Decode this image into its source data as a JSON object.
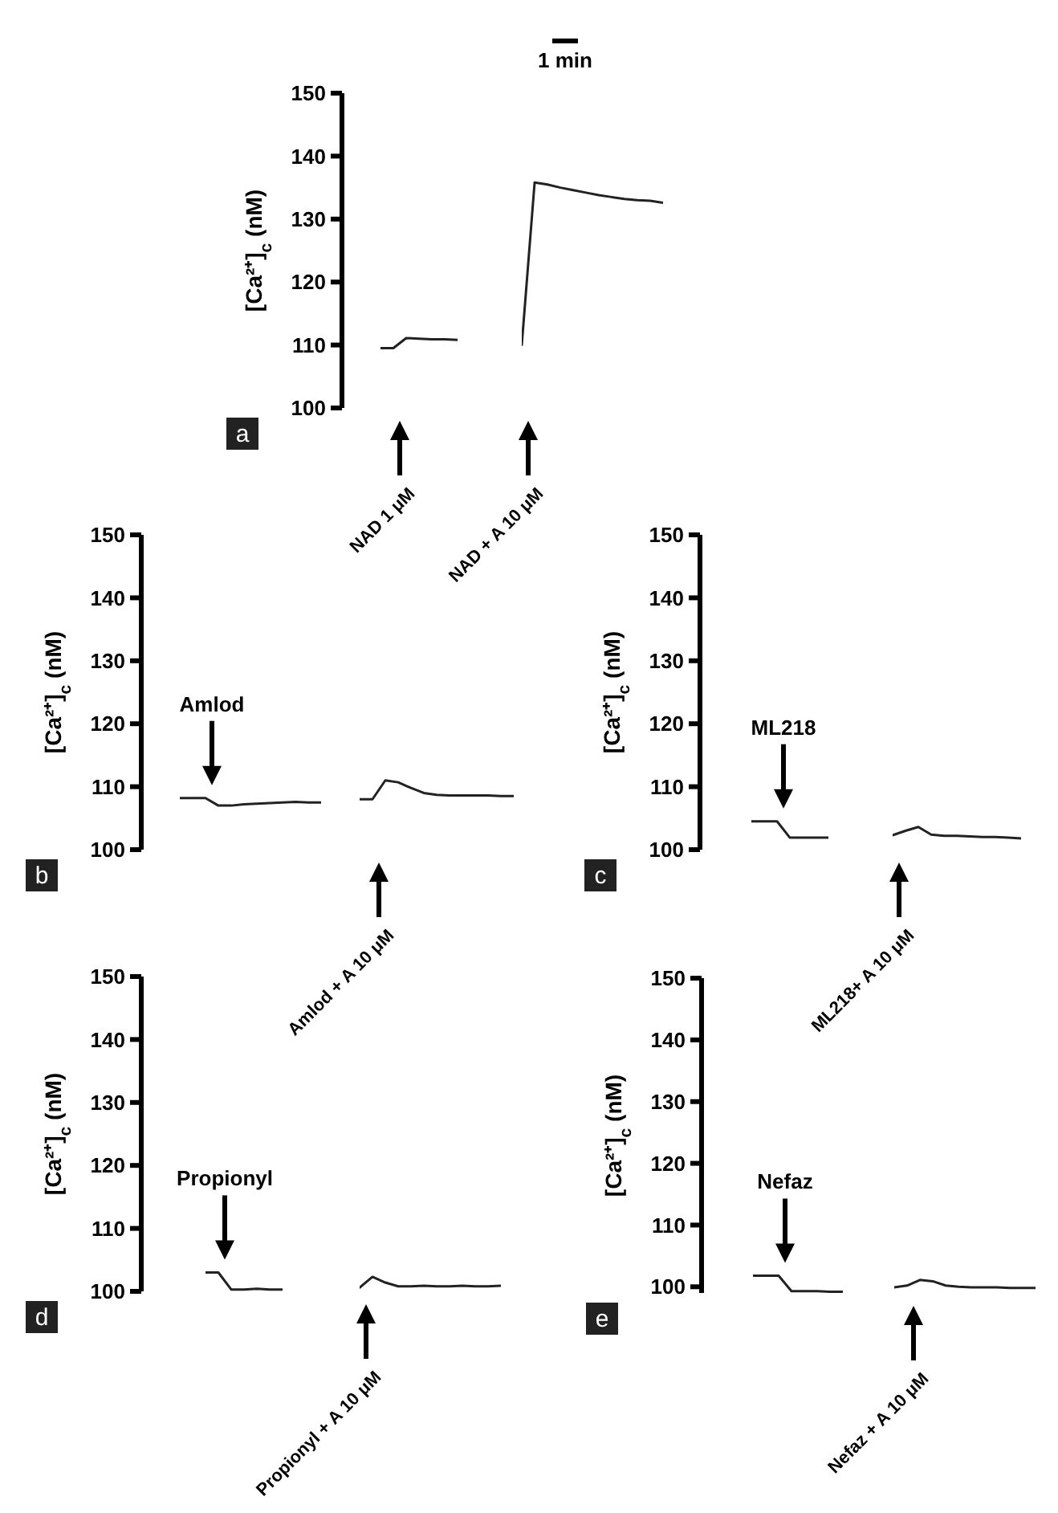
{
  "chart_data": [
    {
      "type": "line",
      "title": "a",
      "ylabel": "[Ca²⁺]$_{c}$ (nM)",
      "tick_labels": "y",
      "ylim": [
        100,
        150
      ],
      "yticks": [
        100,
        110,
        120,
        130,
        140,
        150
      ],
      "color": "#222222",
      "categories": [
        null,
        null,
        null,
        null,
        null,
        null,
        null,
        null,
        null,
        null,
        null,
        null,
        null,
        null,
        null,
        null,
        null,
        null,
        null,
        null,
        null,
        null,
        null
      ],
      "values": [
        109.5,
        109.5,
        111.1,
        111.0,
        110.9,
        110.9,
        110.8,
        null,
        null,
        null,
        null,
        110.0,
        135.8,
        135.5,
        135.0,
        134.6,
        134.2,
        133.8,
        133.5,
        133.2,
        133.0,
        132.9,
        132.6
      ],
      "annotations": [
        "NAD 1 μM",
        "NAD + A 10 μM",
        "1 min"
      ]
    },
    {
      "type": "line",
      "title": "b",
      "ylabel": "[Ca²⁺]$_{c}$ (nM)",
      "tick_labels": "y",
      "ylim": [
        100,
        150
      ],
      "yticks": [
        100,
        110,
        120,
        130,
        140,
        150
      ],
      "color": "#222222",
      "categories": [
        null,
        null,
        null,
        null,
        null,
        null,
        null,
        null,
        null,
        null,
        null,
        null,
        null,
        null,
        null,
        null,
        null,
        null,
        null,
        null,
        null,
        null,
        null,
        null,
        null,
        null,
        null
      ],
      "values": [
        108.2,
        108.2,
        108.2,
        107.0,
        107.0,
        107.2,
        107.3,
        107.4,
        107.5,
        107.6,
        107.5,
        107.5,
        null,
        null,
        108.0,
        108.0,
        111.0,
        110.7,
        109.8,
        109.0,
        108.7,
        108.6,
        108.6,
        108.6,
        108.6,
        108.5,
        108.5
      ],
      "annotations": [
        "Amlod",
        "Amlod + A 10 μM"
      ]
    },
    {
      "type": "line",
      "title": "c",
      "ylabel": "[Ca²⁺]$_{c}$ (nM)",
      "tick_labels": "y",
      "ylim": [
        100,
        150
      ],
      "yticks": [
        100,
        110,
        120,
        130,
        140,
        150
      ],
      "color": "#222222",
      "categories": [
        null,
        null,
        null,
        null,
        null,
        null,
        null,
        null,
        null,
        null,
        null,
        null,
        null,
        null,
        null,
        null,
        null,
        null,
        null,
        null,
        null,
        null
      ],
      "values": [
        104.5,
        104.5,
        104.5,
        101.9,
        101.9,
        101.9,
        101.9,
        null,
        null,
        null,
        null,
        102.3,
        103.0,
        103.6,
        102.4,
        102.2,
        102.2,
        102.1,
        102.0,
        102.0,
        101.9,
        101.8
      ],
      "annotations": [
        "ML218",
        "ML218+ A 10 μM"
      ]
    },
    {
      "type": "line",
      "title": "d",
      "ylabel": "[Ca²⁺]$_{c}$ (nM)",
      "tick_labels": "y",
      "ylim": [
        100,
        150
      ],
      "yticks": [
        100,
        110,
        120,
        130,
        140,
        150
      ],
      "color": "#222222",
      "categories": [
        null,
        null,
        null,
        null,
        null,
        null,
        null,
        null,
        null,
        null,
        null,
        null,
        null,
        null,
        null,
        null,
        null,
        null,
        null,
        null,
        null,
        null,
        null,
        null
      ],
      "values": [
        103.0,
        103.0,
        100.3,
        100.3,
        100.4,
        100.3,
        100.3,
        null,
        null,
        null,
        null,
        null,
        100.6,
        102.3,
        101.4,
        100.8,
        100.8,
        100.9,
        100.8,
        100.8,
        100.9,
        100.8,
        100.8,
        100.9
      ],
      "annotations": [
        "Propionyl",
        "Propionyl + A 10 μM"
      ]
    },
    {
      "type": "line",
      "title": "e",
      "ylabel": "[Ca²⁺]$_{c}$ (nM)",
      "tick_labels": "y",
      "ylim": [
        99,
        150
      ],
      "yticks": [
        100,
        110,
        120,
        130,
        140,
        150
      ],
      "color": "#222222",
      "categories": [
        null,
        null,
        null,
        null,
        null,
        null,
        null,
        null,
        null,
        null,
        null,
        null,
        null,
        null,
        null,
        null,
        null,
        null,
        null,
        null,
        null,
        null,
        null
      ],
      "values": [
        101.8,
        101.8,
        101.8,
        99.3,
        99.3,
        99.3,
        99.2,
        99.2,
        null,
        null,
        null,
        99.9,
        100.2,
        101.1,
        100.9,
        100.2,
        100.0,
        99.9,
        99.9,
        99.9,
        99.8,
        99.8,
        99.8
      ],
      "annotations": [
        "Nefaz",
        "Nefaz + A 10 μM"
      ]
    }
  ]
}
